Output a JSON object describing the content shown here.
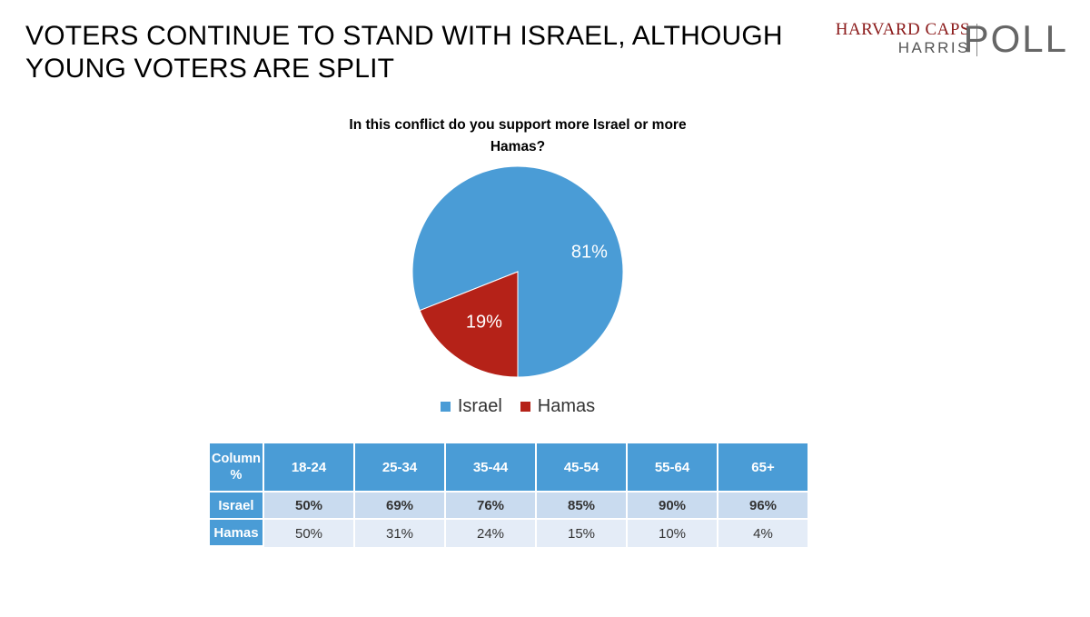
{
  "slide": {
    "title": "VOTERS CONTINUE TO STAND WITH ISRAEL, ALTHOUGH YOUNG VOTERS ARE SPLIT"
  },
  "logo": {
    "line1": "HARVARD CAPS",
    "line2": "HARRIS",
    "line3": "POLL"
  },
  "chart_data": [
    {
      "type": "pie",
      "title": "In this conflict do you support more Israel or more Hamas?",
      "categories": [
        "Israel",
        "Hamas"
      ],
      "values": [
        81,
        19
      ],
      "data_labels": [
        "81%",
        "19%"
      ],
      "colors": [
        "#4a9cd6",
        "#b52218"
      ],
      "legend_position": "bottom"
    },
    {
      "type": "table",
      "corner_header": "Column %",
      "columns": [
        "18-24",
        "25-34",
        "35-44",
        "45-54",
        "55-64",
        "65+"
      ],
      "rows": [
        {
          "label": "Israel",
          "values": [
            "50%",
            "69%",
            "76%",
            "85%",
            "90%",
            "96%"
          ]
        },
        {
          "label": "Hamas",
          "values": [
            "50%",
            "31%",
            "24%",
            "15%",
            "10%",
            "4%"
          ]
        }
      ]
    }
  ]
}
